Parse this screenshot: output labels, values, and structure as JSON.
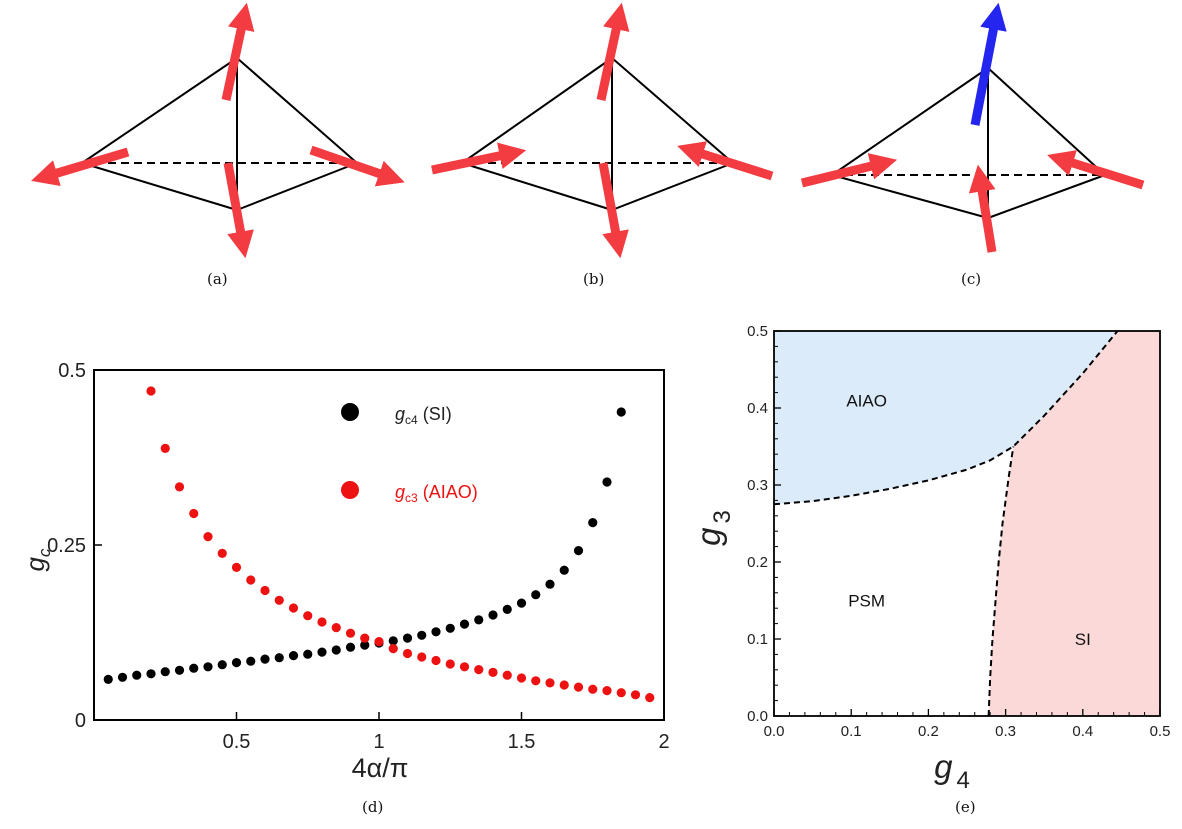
{
  "panel_tags": {
    "a": "(a)",
    "b": "(b)",
    "c": "(c)",
    "d": "(d)",
    "e": "(e)"
  },
  "colors": {
    "arrow_red": "#f33c42",
    "arrow_blue": "#2525f0",
    "series_sic": "#000000",
    "series_aiao": "#ee1111",
    "aiao_fill": "#dcebfa",
    "si_fill": "#fbd9d9"
  },
  "icons": [
    "tetrahedron-diagram",
    "spin-arrow-icon"
  ],
  "chart_data": [
    {
      "type": "scatter",
      "title": "",
      "xlabel": "4α/π",
      "ylabel": "g",
      "ylabel_sub": "c",
      "xlim": [
        0,
        2
      ],
      "ylim": [
        0,
        0.5
      ],
      "xticks": [
        "0.5",
        "1",
        "1.5",
        "2"
      ],
      "yticks": [
        "0",
        "0.25",
        "0.5"
      ],
      "legend_placement": "top-right",
      "series": [
        {
          "name": "g_c4 (SI)",
          "label_main": "g",
          "label_sub": "c4",
          "label_rest": " (SI)",
          "color": "#000000",
          "x": [
            0.05,
            0.1,
            0.15,
            0.2,
            0.25,
            0.3,
            0.35,
            0.4,
            0.45,
            0.5,
            0.55,
            0.6,
            0.65,
            0.7,
            0.75,
            0.8,
            0.85,
            0.9,
            0.95,
            1.0,
            1.05,
            1.1,
            1.15,
            1.2,
            1.25,
            1.3,
            1.35,
            1.4,
            1.45,
            1.5,
            1.55,
            1.6,
            1.65,
            1.7,
            1.75,
            1.8,
            1.85
          ],
          "y": [
            0.058,
            0.061,
            0.064,
            0.066,
            0.069,
            0.071,
            0.074,
            0.076,
            0.079,
            0.082,
            0.084,
            0.087,
            0.089,
            0.092,
            0.094,
            0.097,
            0.1,
            0.104,
            0.107,
            0.11,
            0.113,
            0.117,
            0.121,
            0.126,
            0.131,
            0.137,
            0.143,
            0.15,
            0.158,
            0.167,
            0.179,
            0.194,
            0.214,
            0.242,
            0.282,
            0.34,
            0.44
          ]
        },
        {
          "name": "g_c3 (AIAO)",
          "label_main": "g",
          "label_sub": "c3",
          "label_rest": " (AIAO)",
          "color": "#ee1111",
          "x": [
            0.2,
            0.25,
            0.3,
            0.35,
            0.4,
            0.45,
            0.5,
            0.55,
            0.6,
            0.65,
            0.7,
            0.75,
            0.8,
            0.85,
            0.9,
            0.95,
            1.0,
            1.05,
            1.1,
            1.15,
            1.2,
            1.25,
            1.3,
            1.35,
            1.4,
            1.45,
            1.5,
            1.55,
            1.6,
            1.65,
            1.7,
            1.75,
            1.8,
            1.85,
            1.9,
            1.95
          ],
          "y": [
            0.47,
            0.388,
            0.333,
            0.295,
            0.262,
            0.238,
            0.218,
            0.2,
            0.185,
            0.171,
            0.16,
            0.149,
            0.14,
            0.132,
            0.124,
            0.117,
            0.112,
            0.102,
            0.095,
            0.09,
            0.085,
            0.08,
            0.076,
            0.072,
            0.068,
            0.064,
            0.06,
            0.056,
            0.053,
            0.05,
            0.047,
            0.044,
            0.042,
            0.039,
            0.036,
            0.032
          ]
        }
      ]
    },
    {
      "type": "area",
      "title": "",
      "xlabel": "g",
      "xlabel_sub": "4",
      "ylabel": "g",
      "ylabel_sub": "3",
      "xlim": [
        0,
        0.5
      ],
      "ylim": [
        0,
        0.5
      ],
      "xticks": [
        "0.0",
        "0.1",
        "0.2",
        "0.3",
        "0.4",
        "0.5"
      ],
      "yticks": [
        "0.0",
        "0.1",
        "0.2",
        "0.3",
        "0.4",
        "0.5"
      ],
      "regions": [
        {
          "label": "AIAO",
          "color": "#dcebfa",
          "label_at": [
            0.12,
            0.41
          ]
        },
        {
          "label": "PSM",
          "color": "#ffffff",
          "label_at": [
            0.12,
            0.15
          ]
        },
        {
          "label": "SI",
          "color": "#fbd9d9",
          "label_at": [
            0.4,
            0.1
          ]
        }
      ],
      "boundary_aiao": {
        "x": [
          0.0,
          0.05,
          0.1,
          0.15,
          0.2,
          0.25,
          0.28,
          0.31,
          0.35,
          0.4,
          0.445
        ],
        "y": [
          0.275,
          0.279,
          0.286,
          0.295,
          0.306,
          0.32,
          0.332,
          0.35,
          0.39,
          0.445,
          0.5
        ]
      },
      "boundary_si": {
        "x": [
          0.278,
          0.28,
          0.283,
          0.287,
          0.291,
          0.296,
          0.3,
          0.304,
          0.31
        ],
        "y": [
          0.0,
          0.05,
          0.1,
          0.15,
          0.2,
          0.25,
          0.28,
          0.31,
          0.35
        ]
      }
    }
  ]
}
